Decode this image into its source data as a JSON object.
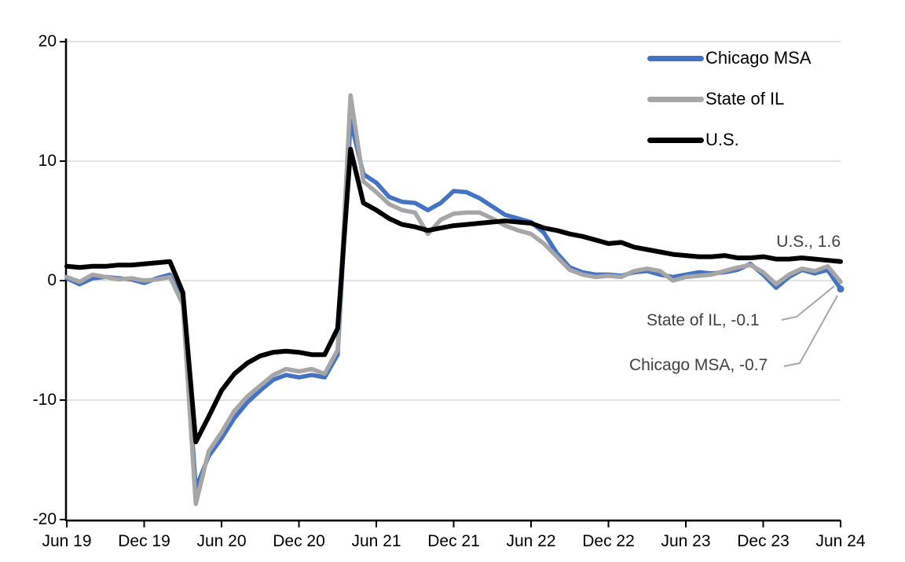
{
  "chart_data": {
    "type": "line",
    "title": "",
    "frequency": "monthly",
    "x_start": "Jun 2019",
    "x_end": "Jun 2024",
    "x_tick_labels": [
      "Jun 19",
      "Dec 19",
      "Jun 20",
      "Dec 20",
      "Jun 21",
      "Dec 21",
      "Jun 22",
      "Dec 22",
      "Jun 23",
      "Dec 23",
      "Jun 24"
    ],
    "y_tick_labels": [
      "20",
      "10",
      "0",
      "-10",
      "-20"
    ],
    "y_ticks": [
      20,
      10,
      0,
      -10,
      -20
    ],
    "ylim": [
      -20,
      20
    ],
    "grid": "horizontal",
    "gridline_color": "#d9d9d9",
    "axis_color": "#000000",
    "legend_position": "top-right",
    "series": [
      {
        "name": "Chicago MSA",
        "color": "#4472c4",
        "width": 5.5,
        "end_marker": true,
        "values": [
          0.2,
          -0.3,
          0.2,
          0.3,
          0.2,
          0.1,
          -0.2,
          0.2,
          0.5,
          -1.8,
          -17.4,
          -14.7,
          -13.2,
          -11.5,
          -10.2,
          -9.2,
          -8.3,
          -7.9,
          -8.1,
          -7.9,
          -8.1,
          -6.2,
          13.4,
          8.9,
          8.2,
          7.0,
          6.6,
          6.5,
          5.9,
          6.5,
          7.5,
          7.4,
          6.9,
          6.2,
          5.5,
          5.2,
          4.9,
          4.0,
          2.3,
          1.1,
          0.7,
          0.5,
          0.5,
          0.4,
          0.7,
          0.8,
          0.5,
          0.3,
          0.5,
          0.7,
          0.6,
          0.7,
          0.9,
          1.4,
          0.5,
          -0.6,
          0.3,
          0.9,
          0.6,
          0.9,
          -0.7
        ]
      },
      {
        "name": "State of IL",
        "color": "#a6a6a6",
        "width": 5.5,
        "end_marker": false,
        "values": [
          0.3,
          -0.1,
          0.5,
          0.3,
          0.1,
          0.2,
          0.0,
          0.1,
          0.3,
          -2.0,
          -18.7,
          -14.3,
          -12.7,
          -10.9,
          -9.7,
          -8.8,
          -7.9,
          -7.4,
          -7.6,
          -7.4,
          -7.8,
          -5.8,
          15.5,
          8.3,
          7.4,
          6.4,
          5.9,
          5.7,
          3.9,
          5.1,
          5.6,
          5.7,
          5.7,
          5.2,
          4.6,
          4.2,
          3.9,
          3.1,
          2.0,
          0.9,
          0.5,
          0.3,
          0.4,
          0.3,
          0.8,
          1.0,
          0.8,
          0.0,
          0.3,
          0.4,
          0.5,
          0.8,
          1.1,
          1.3,
          0.7,
          -0.3,
          0.5,
          1.0,
          0.8,
          1.2,
          -0.1
        ]
      },
      {
        "name": "U.S.",
        "color": "#000000",
        "width": 6,
        "end_marker": false,
        "values": [
          1.2,
          1.1,
          1.2,
          1.2,
          1.3,
          1.3,
          1.4,
          1.5,
          1.6,
          -1.0,
          -13.5,
          -11.4,
          -9.2,
          -7.8,
          -6.9,
          -6.3,
          -6.0,
          -5.9,
          -6.0,
          -6.2,
          -6.2,
          -4.0,
          11.0,
          6.5,
          5.9,
          5.2,
          4.7,
          4.5,
          4.2,
          4.4,
          4.6,
          4.7,
          4.8,
          4.9,
          5.0,
          4.9,
          4.8,
          4.4,
          4.2,
          3.9,
          3.7,
          3.4,
          3.1,
          3.2,
          2.8,
          2.6,
          2.4,
          2.2,
          2.1,
          2.0,
          2.0,
          2.1,
          1.9,
          1.9,
          2.0,
          1.8,
          1.8,
          1.9,
          1.8,
          1.7,
          1.6
        ]
      }
    ],
    "annotations": [
      {
        "series": "U.S.",
        "value": 1.6,
        "label": "U.S., 1.6"
      },
      {
        "series": "State of IL",
        "value": -0.1,
        "label": "State of IL, -0.1"
      },
      {
        "series": "Chicago MSA",
        "value": -0.7,
        "label": "Chicago MSA, -0.7"
      }
    ],
    "leader_line_color": "#a6a6a6"
  }
}
